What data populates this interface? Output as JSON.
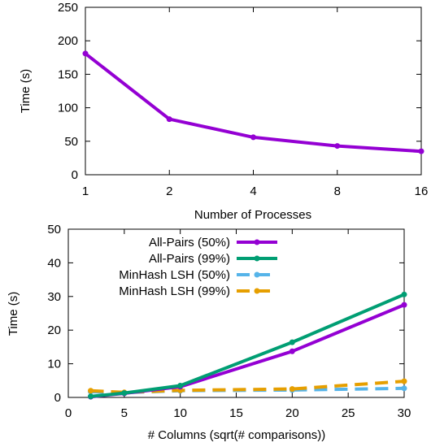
{
  "chart_data": [
    {
      "type": "line",
      "xlabel": "Number of Processes",
      "ylabel": "Time (s)",
      "x_scale": "log2",
      "x": [
        1,
        2,
        4,
        8,
        16
      ],
      "x_ticks": [
        "1",
        "2",
        "4",
        "8",
        "16"
      ],
      "y_ticks": [
        "0",
        "50",
        "100",
        "150",
        "200",
        "250"
      ],
      "ylim": [
        0,
        250
      ],
      "grid": false,
      "series": [
        {
          "values": [
            181,
            83,
            56,
            43,
            35
          ],
          "color": "#9400d3"
        }
      ]
    },
    {
      "type": "line",
      "xlabel": "# Columns (sqrt(# comparisons))",
      "ylabel": "Time (s)",
      "x": [
        2,
        5,
        10,
        20,
        30
      ],
      "x_ticks": [
        "0",
        "5",
        "10",
        "15",
        "20",
        "25",
        "30"
      ],
      "y_ticks": [
        "0",
        "10",
        "20",
        "30",
        "40",
        "50"
      ],
      "xlim": [
        0,
        30
      ],
      "ylim": [
        0,
        50
      ],
      "grid": false,
      "legend_position": "top-left",
      "series": [
        {
          "name": "All-Pairs (50%)",
          "values": [
            0.2,
            1.2,
            3.2,
            13.7,
            27.5
          ],
          "color": "#9400d3",
          "dash": "solid"
        },
        {
          "name": "All-Pairs (99%)",
          "values": [
            0.3,
            1.3,
            3.5,
            16.4,
            30.6
          ],
          "color": "#009e73",
          "dash": "solid"
        },
        {
          "name": "MinHash LSH (50%)",
          "values": [
            1.7,
            1.4,
            2.0,
            2.2,
            2.7
          ],
          "color": "#56b4e9",
          "dash": "dashed"
        },
        {
          "name": "MinHash LSH (99%)",
          "values": [
            2.0,
            1.5,
            2.1,
            2.5,
            4.8
          ],
          "color": "#e69f00",
          "dash": "dashed"
        }
      ]
    }
  ]
}
